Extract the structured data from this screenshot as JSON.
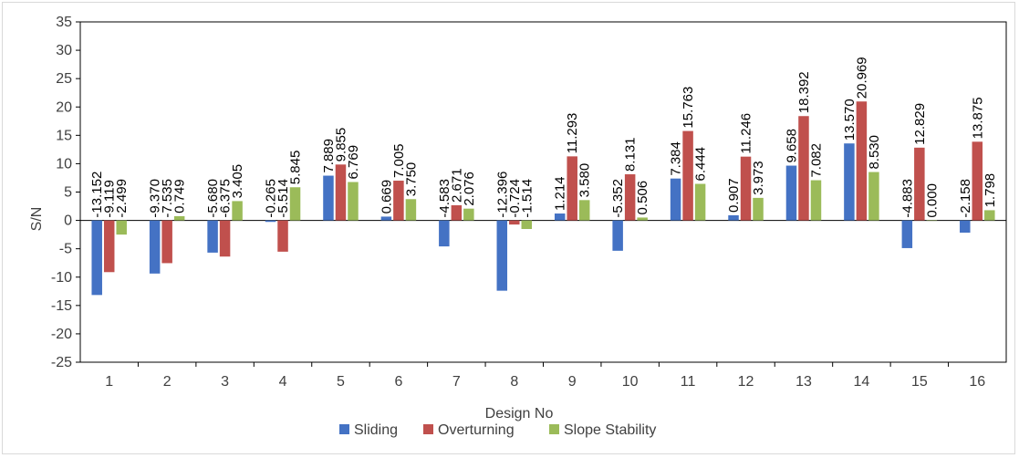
{
  "chart_data": {
    "type": "bar",
    "title": "",
    "xlabel": "Design No",
    "ylabel": "S/N",
    "ylim": [
      -25,
      35
    ],
    "yticks": [
      -25,
      -20,
      -15,
      -10,
      -5,
      0,
      5,
      10,
      15,
      20,
      25,
      30,
      35
    ],
    "grid": false,
    "legend_position": "bottom",
    "categories": [
      "1",
      "2",
      "3",
      "4",
      "5",
      "6",
      "7",
      "8",
      "9",
      "10",
      "11",
      "12",
      "13",
      "14",
      "15",
      "16"
    ],
    "series": [
      {
        "name": "Sliding",
        "color": "#4472C4",
        "values": [
          -13.152,
          -9.37,
          -5.68,
          -0.265,
          7.889,
          0.669,
          -4.583,
          -12.396,
          1.214,
          -5.352,
          7.384,
          0.907,
          9.658,
          13.57,
          -4.883,
          -2.158
        ],
        "labels": [
          "-13.152",
          "-9.370",
          "-5.680",
          "-0.265",
          "7.889",
          "0.669",
          "-4.583",
          "-12.396",
          "1.214",
          "-5.352",
          "7.384",
          "0.907",
          "9.658",
          "13.570",
          "-4.883",
          "-2.158"
        ]
      },
      {
        "name": "Overturning",
        "color": "#C0504D",
        "values": [
          -9.119,
          -7.535,
          -6.375,
          -5.514,
          9.855,
          7.005,
          2.671,
          -0.724,
          11.293,
          8.131,
          15.763,
          11.246,
          18.392,
          20.969,
          12.829,
          13.875
        ],
        "labels": [
          "-9.119",
          "-7.535",
          "-6.375",
          "-5.514",
          "9.855",
          "7.005",
          "2.671",
          "-0.724",
          "11.293",
          "8.131",
          "15.763",
          "11.246",
          "18.392",
          "20.969",
          "12.829",
          "13.875"
        ]
      },
      {
        "name": "Slope Stability",
        "color": "#9BBB59",
        "values": [
          -2.499,
          0.749,
          3.405,
          5.845,
          6.769,
          3.75,
          2.076,
          -1.514,
          3.58,
          0.506,
          6.444,
          3.973,
          7.082,
          8.53,
          0.0,
          1.798
        ],
        "labels": [
          "-2.499",
          "0.749",
          "3.405",
          "5.845",
          "6.769",
          "3.750",
          "2.076",
          "-1.514",
          "3.580",
          "0.506",
          "6.444",
          "3.973",
          "7.082",
          "8.530",
          "0.000",
          "1.798"
        ]
      }
    ]
  }
}
